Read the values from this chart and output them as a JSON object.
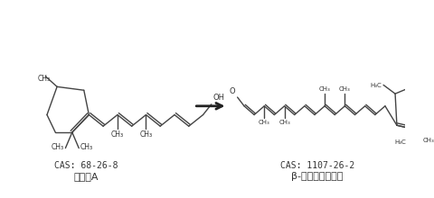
{
  "bg_color": "#ffffff",
  "struct_color": "#444444",
  "text_color": "#333333",
  "arrow_color": "#222222",
  "left_cas": "CAS: 68-26-8",
  "left_name": "维生素A",
  "right_cas": "CAS: 1107-26-2",
  "right_name": "β-阿朴胡萝卜素醇",
  "fig_width": 4.8,
  "fig_height": 2.2,
  "dpi": 100
}
